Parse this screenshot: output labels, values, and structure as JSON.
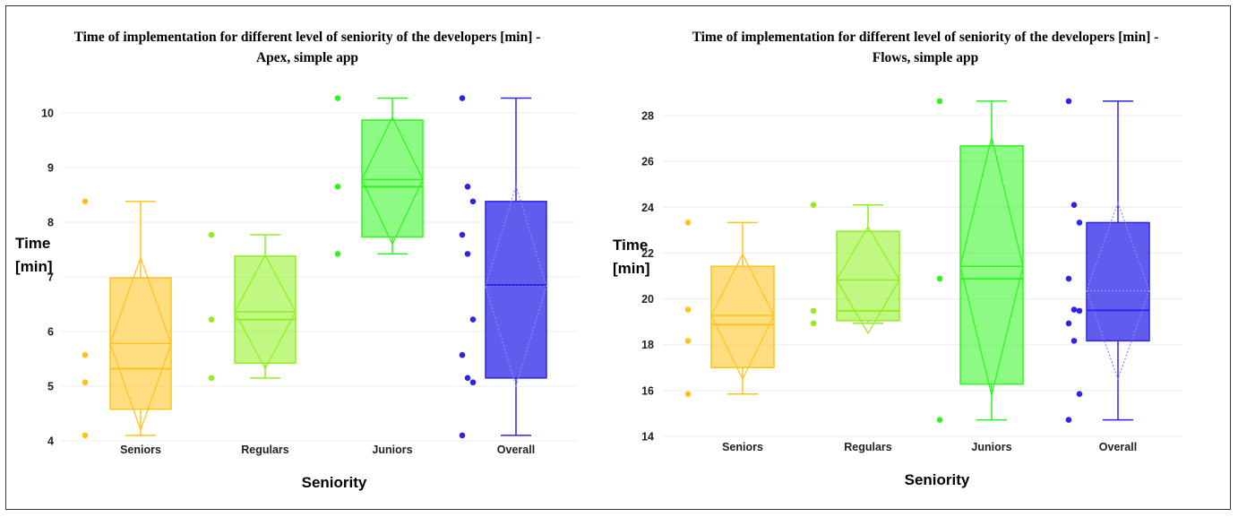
{
  "chart_data": [
    {
      "type": "box",
      "title_line1": "Time of implementation for different level of seniority of the developers [min] -",
      "title_line2": "Apex, simple app",
      "xlabel": "Seniority",
      "ylabel_line1": "Time",
      "ylabel_line2": "[min]",
      "ylim": [
        4,
        10.5
      ],
      "yticks": [
        "4",
        "5",
        "6",
        "7",
        "8",
        "9",
        "10"
      ],
      "categories": [
        "Seniors",
        "Regulars",
        "Juniors",
        "Overall"
      ],
      "series": [
        {
          "name": "Seniors",
          "color": "#ffc21a",
          "min": 4.1,
          "q1": 4.58,
          "median": 5.32,
          "mean": 5.78,
          "q3": 6.98,
          "max": 8.38,
          "mean_lo": 4.2,
          "mean_hi": 7.35,
          "points": [
            8.38,
            5.57,
            5.07,
            4.1
          ]
        },
        {
          "name": "Regulars",
          "color": "#8ef01e",
          "min": 5.15,
          "q1": 5.42,
          "median": 6.22,
          "mean": 6.36,
          "q3": 7.38,
          "max": 7.77,
          "mean_lo": 5.32,
          "mean_hi": 7.4,
          "points": [
            7.77,
            6.22,
            5.15
          ]
        },
        {
          "name": "Juniors",
          "color": "#2ff51e",
          "min": 7.42,
          "q1": 7.73,
          "median": 8.65,
          "mean": 8.78,
          "q3": 9.87,
          "max": 10.27,
          "mean_lo": 7.6,
          "mean_hi": 9.92,
          "points": [
            10.27,
            8.65,
            7.42
          ]
        },
        {
          "name": "Overall",
          "color": "#2c25e8",
          "min": 4.1,
          "q1": 5.15,
          "median": 6.85,
          "mean": 6.83,
          "q3": 8.38,
          "max": 10.27,
          "mean_lo": 5.0,
          "mean_hi": 8.67,
          "points": [
            10.27,
            8.65,
            8.38,
            7.77,
            7.42,
            6.22,
            5.57,
            5.15,
            5.07,
            4.1
          ]
        }
      ]
    },
    {
      "type": "box",
      "title_line1": "Time of implementation for different level of seniority of the developers [min] -",
      "title_line2": "Flows, simple app",
      "xlabel": "Seniority",
      "ylabel_line1": "Time",
      "ylabel_line2": "[min]",
      "ylim": [
        14,
        29
      ],
      "yticks": [
        "14",
        "16",
        "18",
        "20",
        "22",
        "24",
        "26",
        "28"
      ],
      "categories": [
        "Seniors",
        "Regulars",
        "Juniors",
        "Overall"
      ],
      "series": [
        {
          "name": "Seniors",
          "color": "#ffc21a",
          "min": 15.85,
          "q1": 17.0,
          "median": 18.88,
          "mean": 19.28,
          "q3": 21.42,
          "max": 23.33,
          "mean_lo": 16.5,
          "mean_hi": 21.95,
          "points": [
            23.33,
            19.53,
            18.17,
            15.85
          ]
        },
        {
          "name": "Regulars",
          "color": "#8ef01e",
          "min": 18.93,
          "q1": 19.05,
          "median": 19.48,
          "mean": 20.83,
          "q3": 22.95,
          "max": 24.1,
          "mean_lo": 18.5,
          "mean_hi": 23.15,
          "points": [
            24.1,
            19.48,
            18.93
          ]
        },
        {
          "name": "Juniors",
          "color": "#2ff51e",
          "min": 14.72,
          "q1": 16.28,
          "median": 20.88,
          "mean": 21.42,
          "q3": 26.68,
          "max": 28.63,
          "mean_lo": 15.8,
          "mean_hi": 27.05,
          "points": [
            28.63,
            20.88,
            14.72
          ]
        },
        {
          "name": "Overall",
          "color": "#2c25e8",
          "min": 14.72,
          "q1": 18.17,
          "median": 19.5,
          "mean": 20.35,
          "q3": 23.33,
          "max": 28.63,
          "mean_lo": 16.5,
          "mean_hi": 24.2,
          "points": [
            28.63,
            24.1,
            23.33,
            20.88,
            19.53,
            19.48,
            18.93,
            18.17,
            15.85,
            14.72
          ]
        }
      ]
    }
  ]
}
